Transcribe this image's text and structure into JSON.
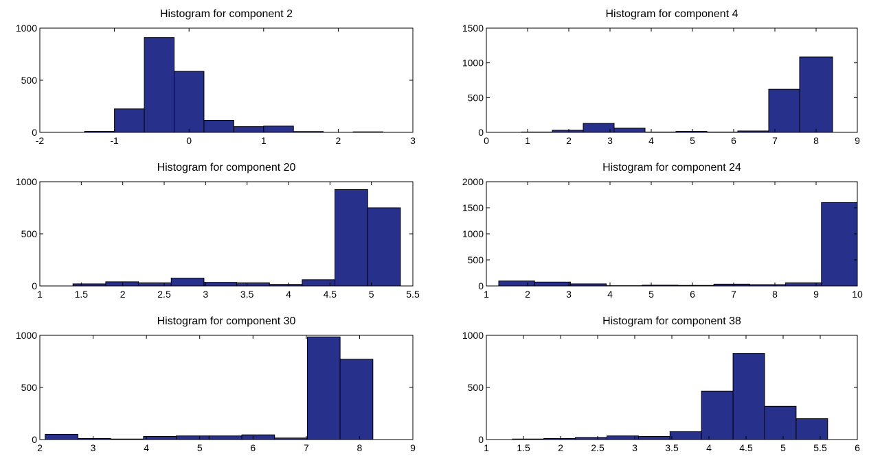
{
  "bar_color": "#27318b",
  "chart_data": [
    {
      "type": "bar",
      "title": "Histogram for component 2",
      "xlabel": "",
      "ylabel": "",
      "xlim": [
        -2,
        3
      ],
      "ylim": [
        0,
        1000
      ],
      "xticks": [
        -2,
        -1,
        0,
        1,
        2,
        3
      ],
      "xtick_labels": [
        "-2",
        "-1",
        "0",
        "1",
        "2",
        "3"
      ],
      "yticks": [
        0,
        500,
        1000
      ],
      "ytick_labels": [
        "0",
        "500",
        "1000"
      ],
      "bin_edges": [
        -1.4,
        -1.0,
        -0.6,
        -0.2,
        0.2,
        0.6,
        1.0,
        1.4,
        1.8,
        2.2,
        2.6
      ],
      "values": [
        10,
        225,
        910,
        585,
        115,
        55,
        60,
        8,
        0,
        5
      ]
    },
    {
      "type": "bar",
      "title": "Histogram for component 4",
      "xlabel": "",
      "ylabel": "",
      "xlim": [
        0,
        9
      ],
      "ylim": [
        0,
        1500
      ],
      "xticks": [
        0,
        1,
        2,
        3,
        4,
        5,
        6,
        7,
        8,
        9
      ],
      "xtick_labels": [
        "0",
        "1",
        "2",
        "3",
        "4",
        "5",
        "6",
        "7",
        "8",
        "9"
      ],
      "yticks": [
        0,
        500,
        1000,
        1500
      ],
      "ytick_labels": [
        "0",
        "500",
        "1000",
        "1500"
      ],
      "bin_edges": [
        0.85,
        1.6,
        2.35,
        3.1,
        3.85,
        4.6,
        5.35,
        6.1,
        6.85,
        7.6,
        8.4
      ],
      "values": [
        5,
        30,
        130,
        60,
        5,
        15,
        5,
        20,
        620,
        1085
      ]
    },
    {
      "type": "bar",
      "title": "Histogram for component 20",
      "xlabel": "",
      "ylabel": "",
      "xlim": [
        1,
        5.5
      ],
      "ylim": [
        0,
        1000
      ],
      "xticks": [
        1,
        1.5,
        2,
        2.5,
        3,
        3.5,
        4,
        4.5,
        5,
        5.5
      ],
      "xtick_labels": [
        "1",
        "1.5",
        "2",
        "2.5",
        "3",
        "3.5",
        "4",
        "4.5",
        "5",
        "5.5"
      ],
      "yticks": [
        0,
        500,
        1000
      ],
      "ytick_labels": [
        "0",
        "500",
        "1000"
      ],
      "bin_edges": [
        1.4,
        1.795,
        2.19,
        2.585,
        2.98,
        3.375,
        3.77,
        4.165,
        4.56,
        4.955,
        5.35
      ],
      "values": [
        20,
        40,
        30,
        75,
        35,
        30,
        15,
        60,
        925,
        750
      ]
    },
    {
      "type": "bar",
      "title": "Histogram for component 24",
      "xlabel": "",
      "ylabel": "",
      "xlim": [
        1,
        10
      ],
      "ylim": [
        0,
        2000
      ],
      "xticks": [
        1,
        2,
        3,
        4,
        5,
        6,
        7,
        8,
        9,
        10
      ],
      "xtick_labels": [
        "1",
        "2",
        "3",
        "4",
        "5",
        "6",
        "7",
        "8",
        "9",
        "10"
      ],
      "yticks": [
        0,
        500,
        1000,
        1500,
        2000
      ],
      "ytick_labels": [
        "0",
        "500",
        "1000",
        "1500",
        "2000"
      ],
      "bin_edges": [
        1.3,
        2.17,
        3.04,
        3.91,
        4.78,
        5.65,
        6.52,
        7.39,
        8.26,
        9.13,
        10.0
      ],
      "values": [
        95,
        75,
        40,
        5,
        15,
        10,
        35,
        25,
        60,
        1600
      ]
    },
    {
      "type": "bar",
      "title": "Histogram for component 30",
      "xlabel": "",
      "ylabel": "",
      "xlim": [
        2,
        9
      ],
      "ylim": [
        0,
        1000
      ],
      "xticks": [
        2,
        3,
        4,
        5,
        6,
        7,
        8,
        9
      ],
      "xtick_labels": [
        "2",
        "3",
        "4",
        "5",
        "6",
        "7",
        "8",
        "9"
      ],
      "yticks": [
        0,
        500,
        1000
      ],
      "ytick_labels": [
        "0",
        "500",
        "1000"
      ],
      "bin_edges": [
        2.1,
        2.715,
        3.33,
        3.945,
        4.56,
        5.175,
        5.79,
        6.405,
        7.02,
        7.635,
        8.25
      ],
      "values": [
        50,
        10,
        5,
        30,
        35,
        35,
        45,
        15,
        985,
        770
      ]
    },
    {
      "type": "bar",
      "title": "Histogram for component 38",
      "xlabel": "",
      "ylabel": "",
      "xlim": [
        1,
        6
      ],
      "ylim": [
        0,
        1000
      ],
      "xticks": [
        1,
        1.5,
        2,
        2.5,
        3,
        3.5,
        4,
        4.5,
        5,
        5.5,
        6
      ],
      "xtick_labels": [
        "1",
        "1.5",
        "2",
        "2.5",
        "3",
        "3.5",
        "4",
        "4.5",
        "5",
        "5.5",
        "6"
      ],
      "yticks": [
        0,
        500,
        1000
      ],
      "ytick_labels": [
        "0",
        "500",
        "1000"
      ],
      "bin_edges": [
        1.35,
        1.775,
        2.2,
        2.625,
        3.05,
        3.475,
        3.9,
        4.325,
        4.75,
        5.175,
        5.6
      ],
      "values": [
        5,
        10,
        20,
        35,
        30,
        75,
        465,
        825,
        320,
        200
      ]
    }
  ]
}
